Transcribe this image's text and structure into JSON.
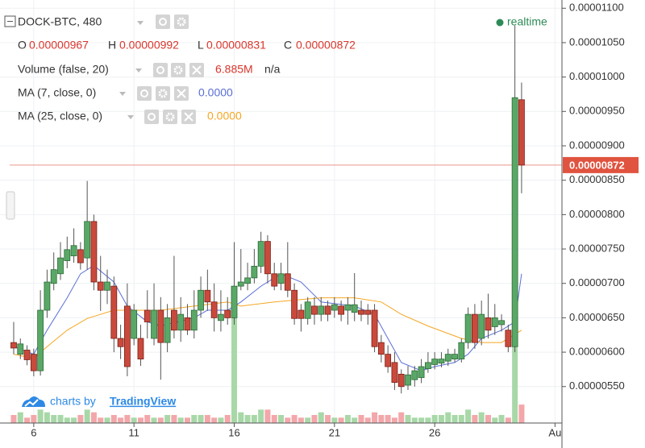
{
  "chart_data": {
    "type": "candlestick",
    "symbol": "DOCK-BTC, 480",
    "ohlc_legend": [
      {
        "key": "O",
        "text": "0.00000967"
      },
      {
        "key": "H",
        "text": "0.00000992"
      },
      {
        "key": "L",
        "text": "0.00000831"
      },
      {
        "key": "C",
        "text": "0.00000872"
      }
    ],
    "volume_legend": {
      "name": "Volume (false, 20)",
      "last": "6.885M",
      "extra": "n/a"
    },
    "realtime": "realtime",
    "branding": {
      "prefix": "charts by",
      "name": "TradingView"
    },
    "up_color": "#5aa867",
    "down_color": "#c94a3c",
    "volume_up_color": "#a8d8a8",
    "volume_down_color": "#f3a7aa",
    "grid": true,
    "xlim": [
      -0.6,
      81.8
    ],
    "xticks": [
      {
        "value": 3,
        "label": "6"
      },
      {
        "value": 18,
        "label": "11"
      },
      {
        "value": 33,
        "label": "16"
      },
      {
        "value": 48,
        "label": "21"
      },
      {
        "value": 63,
        "label": "26"
      },
      {
        "value": 81,
        "label": "Au"
      }
    ],
    "ylim": [
      4.97e-06,
      1.112e-05
    ],
    "yticks": [
      {
        "value": 1.1e-05,
        "label": "0.00001100"
      },
      {
        "value": 1.05e-05,
        "label": "0.00001050"
      },
      {
        "value": 1e-05,
        "label": "0.00001000"
      },
      {
        "value": 9.5e-06,
        "label": "0.00000950"
      },
      {
        "value": 9e-06,
        "label": "0.00000900"
      },
      {
        "value": 8.5e-06,
        "label": "0.00000850"
      },
      {
        "value": 8e-06,
        "label": "0.00000800"
      },
      {
        "value": 7.5e-06,
        "label": "0.00000750"
      },
      {
        "value": 7e-06,
        "label": "0.00000700"
      },
      {
        "value": 6.5e-06,
        "label": "0.00000650"
      },
      {
        "value": 6e-06,
        "label": "0.00000600"
      },
      {
        "value": 5.5e-06,
        "label": "0.00000550"
      }
    ],
    "last_price": {
      "value": 8.72e-06,
      "label": "0.00000872",
      "color": "#e0533f"
    },
    "open": [
      6.14e-06,
      5.97e-06,
      6.03e-06,
      5.97e-06,
      5.73e-06,
      6.61e-06,
      7e-06,
      7.14e-06,
      7.33e-06,
      7.4e-06,
      7.49e-06,
      7.37e-06,
      7.9e-06,
      7.02e-06,
      6.9e-06,
      6.96e-06,
      6.2e-06,
      6.67e-06,
      6.2e-06,
      6.2e-06,
      6.61e-06,
      6.2e-06,
      6.61e-06,
      6.14e-06,
      6.61e-06,
      6.32e-06,
      6.5e-06,
      6.32e-06,
      6.61e-06,
      6.9e-06,
      6.73e-06,
      6.46e-06,
      6.61e-06,
      6.5e-06,
      6.96e-06,
      7e-06,
      7.08e-06,
      7.25e-06,
      7.61e-06,
      7.14e-06,
      7e-06,
      7.14e-06,
      6.9e-06,
      6.61e-06,
      6.49e-06,
      6.67e-06,
      6.55e-06,
      6.67e-06,
      6.61e-06,
      6.67e-06,
      6.61e-06,
      6.58e-06,
      6.61e-06,
      6.61e-06,
      6.61e-06,
      6.14e-06,
      5.97e-06,
      5.85e-06,
      5.68e-06,
      5.52e-06,
      5.6e-06,
      5.63e-06,
      5.76e-06,
      5.82e-06,
      5.84e-06,
      5.87e-06,
      5.9e-06,
      5.9e-06,
      6.14e-06,
      6.55e-06,
      6.2e-06,
      6.5e-06,
      6.37e-06,
      6.4e-06,
      6.32e-06,
      6.08e-06,
      9.67e-06
    ],
    "high": [
      6.44e-06,
      6.2e-06,
      6.1e-06,
      6.05e-06,
      6.9e-06,
      7.2e-06,
      7.45e-06,
      7.6e-06,
      7.68e-06,
      7.8e-06,
      7.6e-06,
      8.49e-06,
      8e-06,
      7.4e-06,
      7.2e-06,
      7.1e-06,
      6.4e-06,
      7e-06,
      6.7e-06,
      6.4e-06,
      6.9e-06,
      7e-06,
      6.8e-06,
      6.7e-06,
      7.4e-06,
      6.8e-06,
      6.7e-06,
      6.9e-06,
      7.1e-06,
      7.2e-06,
      7e-06,
      6.9e-06,
      6.8e-06,
      7.6e-06,
      7.5e-06,
      7.3e-06,
      7.5e-06,
      7.75e-06,
      7.7e-06,
      7.3e-06,
      7.3e-06,
      7.6e-06,
      7e-06,
      6.7e-06,
      6.8e-06,
      6.8e-06,
      6.8e-06,
      6.75e-06,
      6.8e-06,
      6.75e-06,
      6.8e-06,
      7.15e-06,
      6.75e-06,
      6.7e-06,
      6.7e-06,
      6.25e-06,
      6.1e-06,
      6e-06,
      5.75e-06,
      5.8e-06,
      5.8e-06,
      5.9e-06,
      6e-06,
      6e-06,
      6e-06,
      6.05e-06,
      6.05e-06,
      6.2e-06,
      6.65e-06,
      6.7e-06,
      6.75e-06,
      6.85e-06,
      6.7e-06,
      6.55e-06,
      6.4e-06,
      1.075e-05,
      9.92e-06
    ],
    "low": [
      5.97e-06,
      5.9e-06,
      5.81e-06,
      5.65e-06,
      5.66e-06,
      6.5e-06,
      6.9e-06,
      7.05e-06,
      7.22e-06,
      7.3e-06,
      7.2e-06,
      7.2e-06,
      6.9e-06,
      6.6e-06,
      6.7e-06,
      6e-06,
      5.9e-06,
      5.65e-06,
      6.1e-06,
      5.8e-06,
      6.2e-06,
      6.1e-06,
      5.6e-06,
      6e-06,
      6.2e-06,
      6.15e-06,
      6.25e-06,
      6.2e-06,
      6.5e-06,
      6.6e-06,
      6.3e-06,
      6.3e-06,
      6.4e-06,
      6.4e-06,
      6.9e-06,
      6.9e-06,
      7e-06,
      7.15e-06,
      7e-06,
      6.9e-06,
      6.9e-06,
      6.8e-06,
      6.4e-06,
      6.3e-06,
      6.4e-06,
      6.4e-06,
      6.45e-06,
      6.45e-06,
      6.5e-06,
      6.45e-06,
      6.4e-06,
      6.45e-06,
      6.45e-06,
      6.4e-06,
      6e-06,
      5.85e-06,
      5.7e-06,
      5.45e-06,
      5.4e-06,
      5.45e-06,
      5.5e-06,
      5.55e-06,
      5.7e-06,
      5.75e-06,
      5.78e-06,
      5.8e-06,
      5.85e-06,
      5.85e-06,
      6.05e-06,
      6.05e-06,
      6.1e-06,
      6.2e-06,
      6.25e-06,
      6.3e-06,
      6e-06,
      6e-06,
      8.31e-06
    ],
    "close": [
      6.06e-06,
      6.12e-06,
      5.89e-06,
      5.73e-06,
      6.61e-06,
      7.02e-06,
      7.2e-06,
      7.37e-06,
      7.49e-06,
      7.55e-06,
      7.3e-06,
      7.9e-06,
      7.02e-06,
      6.9e-06,
      7.02e-06,
      6.2e-06,
      6.08e-06,
      5.79e-06,
      6.61e-06,
      5.9e-06,
      6.44e-06,
      6.61e-06,
      6.14e-06,
      6.5e-06,
      6.32e-06,
      6.55e-06,
      6.32e-06,
      6.61e-06,
      6.9e-06,
      6.73e-06,
      6.5e-06,
      6.55e-06,
      6.5e-06,
      6.96e-06,
      7.02e-06,
      7.08e-06,
      7.25e-06,
      7.61e-06,
      7.14e-06,
      6.96e-06,
      7.14e-06,
      6.9e-06,
      6.49e-06,
      6.49e-06,
      6.73e-06,
      6.55e-06,
      6.67e-06,
      6.55e-06,
      6.69e-06,
      6.55e-06,
      6.69e-06,
      6.69e-06,
      6.55e-06,
      6.55e-06,
      6.08e-06,
      5.97e-06,
      5.79e-06,
      5.56e-06,
      5.5e-06,
      5.67e-06,
      5.73e-06,
      5.79e-06,
      5.85e-06,
      5.9e-06,
      5.9e-06,
      5.97e-06,
      5.97e-06,
      6.14e-06,
      6.55e-06,
      6.14e-06,
      6.55e-06,
      6.32e-06,
      6.5e-06,
      6.46e-06,
      6.08e-06,
      9.7e-06,
      8.72e-06
    ],
    "volume": [
      3000000.0,
      4000000.0,
      2000000.0,
      3000000.0,
      5000000.0,
      4000000.0,
      3000000.0,
      3000000.0,
      2000000.0,
      2000000.0,
      3000000.0,
      5000000.0,
      4000000.0,
      2000000.0,
      2000000.0,
      3000000.0,
      2000000.0,
      3000000.0,
      2000000.0,
      2000000.0,
      3000000.0,
      2000000.0,
      2000000.0,
      3000000.0,
      3000000.0,
      2000000.0,
      2000000.0,
      3000000.0,
      3000000.0,
      3000000.0,
      2000000.0,
      2000000.0,
      3000000.0,
      40000000.0,
      4000000.0,
      3000000.0,
      3000000.0,
      5000000.0,
      5000000.0,
      3000000.0,
      3000000.0,
      2000000.0,
      3000000.0,
      2000000.0,
      2000000.0,
      3000000.0,
      4000000.0,
      3000000.0,
      2000000.0,
      2000000.0,
      3000000.0,
      2000000.0,
      3000000.0,
      2000000.0,
      4000000.0,
      3000000.0,
      3000000.0,
      2000000.0,
      4000000.0,
      3000000.0,
      2000000.0,
      2000000.0,
      2000000.0,
      3000000.0,
      3000000.0,
      4000000.0,
      3000000.0,
      3000000.0,
      5000000.0,
      3000000.0,
      4000000.0,
      3000000.0,
      2000000.0,
      3000000.0,
      2000000.0,
      29000000.0,
      6885000
    ],
    "ma": [
      {
        "name": "MA (7, close, 0)",
        "value_text": "0.0000",
        "color": "#5b6fd6",
        "x": [
          0,
          3,
          5,
          8,
          10,
          12,
          15,
          17,
          20,
          22,
          27,
          29,
          32,
          34,
          37,
          40,
          43,
          46,
          51,
          54,
          56,
          58,
          61,
          63,
          66,
          68,
          70,
          73,
          75,
          76
        ],
        "values": [
          6.08e-06,
          5.97e-06,
          6.32e-06,
          6.79e-06,
          7.14e-06,
          7.26e-06,
          7.02e-06,
          6.67e-06,
          6.44e-06,
          6.38e-06,
          6.5e-06,
          6.61e-06,
          6.61e-06,
          6.73e-06,
          6.96e-06,
          7.14e-06,
          7.02e-06,
          6.73e-06,
          6.67e-06,
          6.55e-06,
          6.2e-06,
          5.85e-06,
          5.73e-06,
          5.79e-06,
          5.85e-06,
          5.97e-06,
          6.2e-06,
          6.32e-06,
          6.44e-06,
          7.14e-06
        ]
      },
      {
        "name": "MA (25, close, 0)",
        "value_text": "0.0000",
        "color": "#f5a623",
        "x": [
          0,
          3,
          5,
          8,
          11,
          15,
          22,
          27,
          32,
          34,
          39,
          46,
          51,
          55,
          58,
          62,
          67,
          70,
          73,
          76
        ],
        "values": [
          5.97e-06,
          5.91e-06,
          6.08e-06,
          6.32e-06,
          6.49e-06,
          6.61e-06,
          6.61e-06,
          6.67e-06,
          6.73e-06,
          6.67e-06,
          6.73e-06,
          6.79e-06,
          6.79e-06,
          6.73e-06,
          6.55e-06,
          6.38e-06,
          6.2e-06,
          6.14e-06,
          6.14e-06,
          6.32e-06
        ]
      }
    ]
  }
}
